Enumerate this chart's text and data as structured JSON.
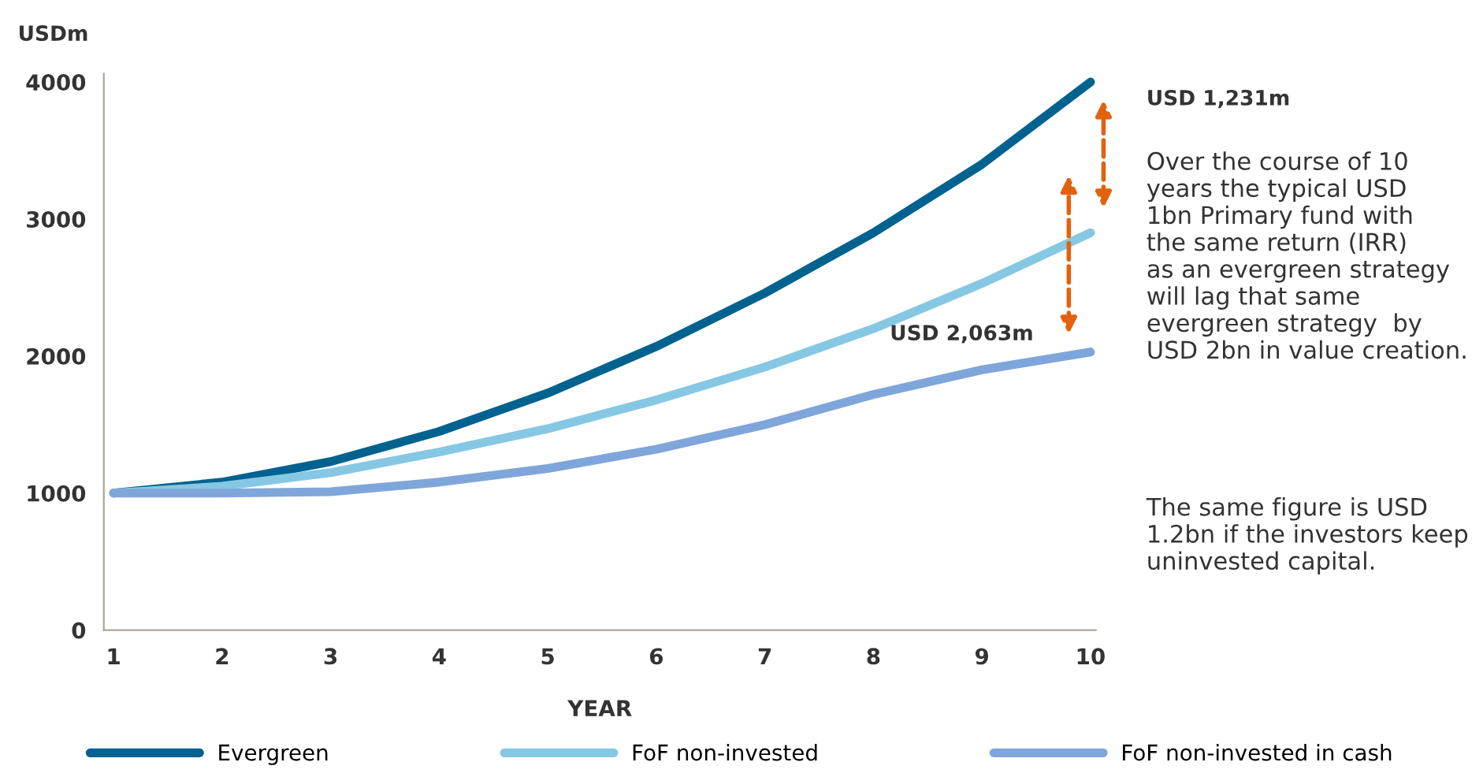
{
  "chart_data": {
    "type": "line",
    "ylabel": "USDm",
    "xlabel": "YEAR",
    "x": [
      1,
      2,
      3,
      4,
      5,
      6,
      7,
      8,
      9,
      10
    ],
    "xlim": [
      0.91,
      10.05
    ],
    "xticks": [
      1,
      2,
      3,
      4,
      5,
      6,
      7,
      8,
      9,
      10
    ],
    "ylim": [
      0,
      4060
    ],
    "yticks": [
      0,
      1000,
      2000,
      3000,
      4000
    ],
    "series": [
      {
        "name": "Evergreen",
        "color": "#00628f",
        "values": [
          1000,
          1080,
          1230,
          1450,
          1730,
          2070,
          2460,
          2900,
          3400,
          4000
        ]
      },
      {
        "name": "FoF non-invested",
        "color": "#86c8e3",
        "values": [
          1000,
          1050,
          1150,
          1300,
          1470,
          1680,
          1920,
          2200,
          2530,
          2900
        ]
      },
      {
        "name": "FoF non-invested in cash",
        "color": "#7fa6da",
        "values": [
          1000,
          1000,
          1010,
          1080,
          1180,
          1320,
          1500,
          1720,
          1900,
          2030
        ]
      }
    ],
    "annotations": [
      "USD 1,231m",
      "USD 2,063m",
      "Over the course of 10\nyears the typical USD\n1bn Primary fund with\nthe same return (IRR)\nas an evergreen strategy\nwill lag that same\nevergreen strategy  by\nUSD 2bn in value creation.",
      "The same figure is USD\n1.2bn if the investors keep\nuninvested capital."
    ],
    "legend": "bottom",
    "grid": false,
    "line_style": "solid",
    "marker": "none"
  }
}
